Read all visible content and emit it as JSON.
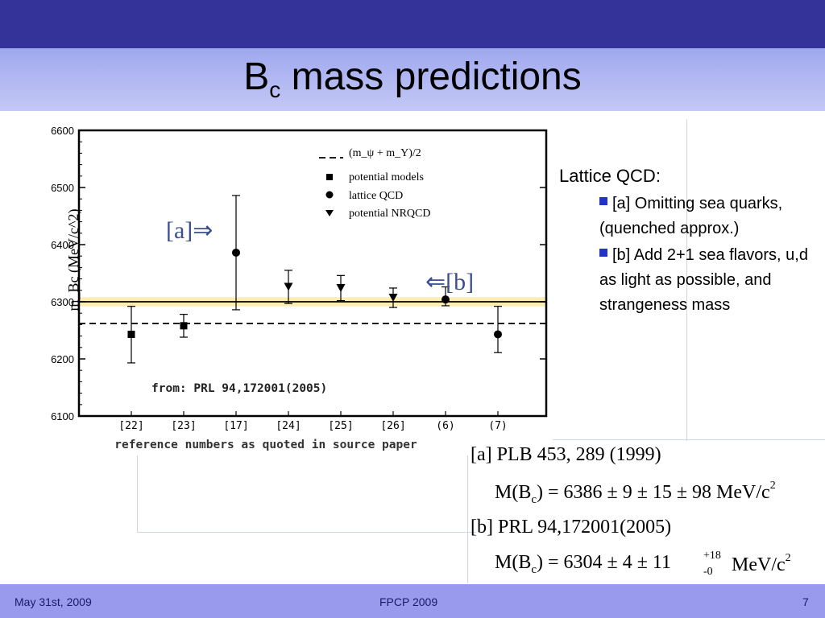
{
  "title": {
    "main": "B",
    "sub": "c",
    "rest": " mass predictions"
  },
  "lattice": {
    "heading": "Lattice QCD:",
    "bullets": [
      "[a] Omitting sea quarks, (quenched approx.)",
      "[b] Add 2+1 sea flavors,  u,d as light as possible, and strangeness mass"
    ]
  },
  "refs": {
    "a_line": "[a] PLB 453, 289 (1999)",
    "a_eq_lhs": "M(B",
    "a_eq_sub": "c",
    "a_eq_rhs": ") = 6386 ± 9 ± 15 ± 98 MeV/c",
    "a_eq_sup": "2",
    "b_line": "[b] PRL 94,172001(2005)",
    "b_eq_lhs": "M(B",
    "b_eq_sub": "c",
    "b_eq_rhs": ") = 6304 ± 4 ± 11",
    "b_eq_plus": "+18",
    "b_eq_minus": "-0",
    "b_eq_unit": "MeV/c",
    "b_eq_sup": "2"
  },
  "footer": {
    "date": "May 31st, 2009",
    "conf": "FPCP 2009",
    "page": "7"
  },
  "chart_data": {
    "type": "scatter",
    "xlabel": "reference numbers as quoted in source paper",
    "ylabel": "m_Bc (MeV/c^2)",
    "ylim": [
      6100,
      6600
    ],
    "yticks": [
      6100,
      6200,
      6300,
      6400,
      6500,
      6600
    ],
    "categories": [
      "[22]",
      "[23]",
      "[17]",
      "[24]",
      "[25]",
      "[26]",
      "(6)",
      "(7)"
    ],
    "points": [
      {
        "category": "[22]",
        "value": 6243,
        "err_low": 6193,
        "err_high": 6292,
        "marker": "square"
      },
      {
        "category": "[23]",
        "value": 6258,
        "err_low": 6238,
        "err_high": 6278,
        "marker": "square"
      },
      {
        "category": "[17]",
        "value": 6386,
        "err_low": 6286,
        "err_high": 6486,
        "marker": "circle"
      },
      {
        "category": "[24]",
        "value": 6326,
        "err_low": 6297,
        "err_high": 6355,
        "marker": "triangle"
      },
      {
        "category": "[25]",
        "value": 6324,
        "err_low": 6302,
        "err_high": 6346,
        "marker": "triangle"
      },
      {
        "category": "[26]",
        "value": 6307,
        "err_low": 6290,
        "err_high": 6324,
        "marker": "triangle"
      },
      {
        "category": "(6)",
        "value": 6304,
        "err_low": 6293,
        "err_high": 6326,
        "marker": "circle"
      },
      {
        "category": "(7)",
        "value": 6243,
        "err_low": 6211,
        "err_high": 6292,
        "marker": "circle"
      }
    ],
    "reference_lines": {
      "solid": 6300,
      "dashed": 6262,
      "band": [
        6292,
        6308
      ]
    },
    "legend": {
      "entries": [
        "(m_ψ + m_Υ)/2",
        "potential models",
        "lattice QCD",
        "potential NRQCD"
      ],
      "placement": "top-right"
    },
    "annotations": {
      "a": "[a]⇒",
      "b": "⇐[b]",
      "source": "from:  PRL 94,172001(2005)"
    },
    "colors": {
      "band": "#fbeaa5",
      "annotation": "#3a4f8f"
    }
  }
}
